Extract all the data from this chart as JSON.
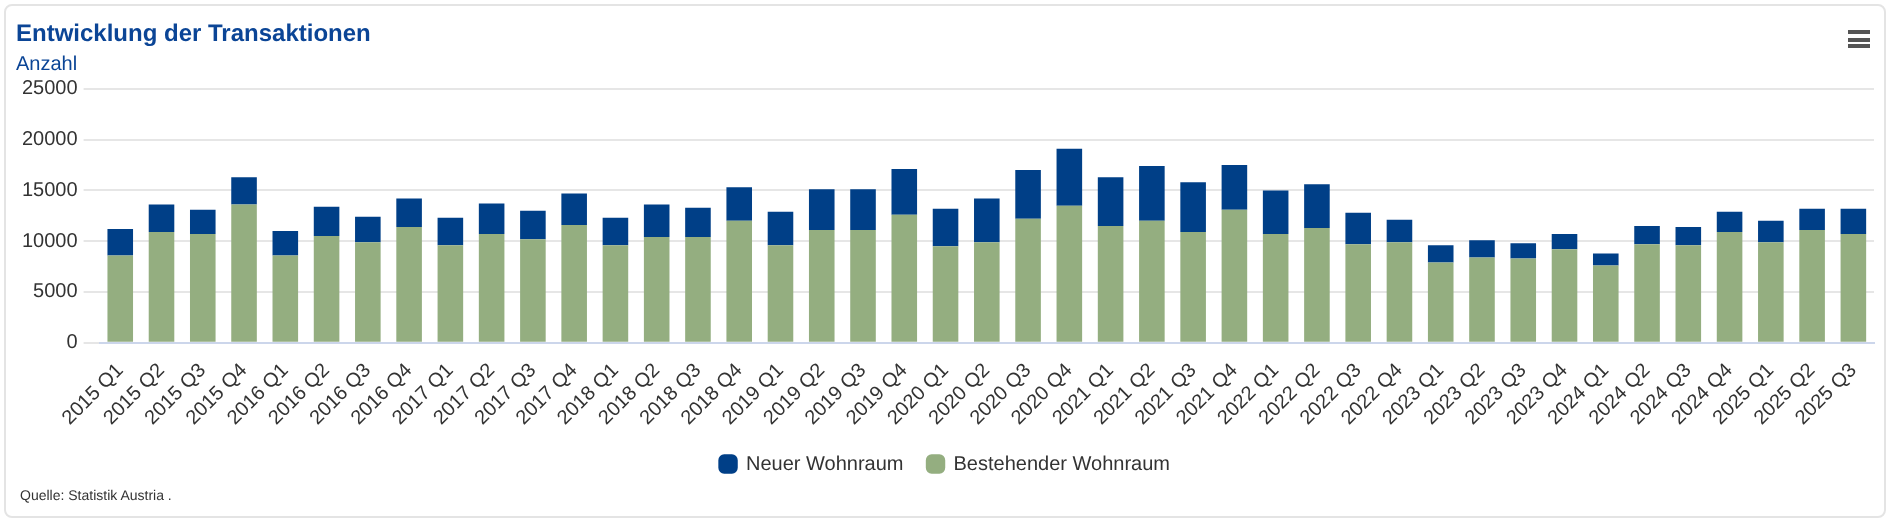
{
  "chart_data": {
    "type": "bar",
    "title": "Entwicklung der Transaktionen",
    "subtitle": "Anzahl",
    "stacked": true,
    "categories": [
      "2015 Q1",
      "2015 Q2",
      "2015 Q3",
      "2015 Q4",
      "2016 Q1",
      "2016 Q2",
      "2016 Q3",
      "2016 Q4",
      "2017 Q1",
      "2017 Q2",
      "2017 Q3",
      "2017 Q4",
      "2018 Q1",
      "2018 Q2",
      "2018 Q3",
      "2018 Q4",
      "2019 Q1",
      "2019 Q2",
      "2019 Q3",
      "2019 Q4",
      "2020 Q1",
      "2020 Q2",
      "2020 Q3",
      "2020 Q4",
      "2021 Q1",
      "2021 Q2",
      "2021 Q3",
      "2021 Q4",
      "2022 Q1",
      "2022 Q2",
      "2022 Q3",
      "2022 Q4",
      "2023 Q1",
      "2023 Q2",
      "2023 Q3",
      "2023 Q4",
      "2024 Q1",
      "2024 Q2",
      "2024 Q3",
      "2024 Q4",
      "2025 Q1",
      "2025 Q2",
      "2025 Q3"
    ],
    "series": [
      {
        "name": "Bestehender Wohnraum",
        "color": "#94ae80",
        "values": [
          8600,
          10900,
          10700,
          13600,
          8600,
          10500,
          9900,
          11400,
          9600,
          10700,
          10200,
          11600,
          9600,
          10400,
          10400,
          12000,
          9600,
          11100,
          11100,
          12600,
          9500,
          9900,
          12200,
          13500,
          11500,
          12000,
          10900,
          13100,
          10700,
          11300,
          9700,
          9900,
          7900,
          8400,
          8300,
          9200,
          7600,
          9700,
          9600,
          10900,
          9900,
          11100,
          10700
        ]
      },
      {
        "name": "Neuer Wohnraum",
        "color": "#003f87",
        "values": [
          2600,
          2700,
          2400,
          2700,
          2400,
          2900,
          2500,
          2800,
          2700,
          3000,
          2800,
          3100,
          2700,
          3200,
          2900,
          3300,
          3300,
          4000,
          4000,
          4500,
          3700,
          4300,
          4800,
          5600,
          4800,
          5400,
          4900,
          4400,
          4300,
          4300,
          3100,
          2200,
          1700,
          1700,
          1500,
          1500,
          1200,
          1800,
          1800,
          2000,
          2100,
          2100,
          2500
        ]
      }
    ],
    "ylim": [
      0,
      25000
    ],
    "yticks": [
      0,
      5000,
      10000,
      15000,
      20000,
      25000
    ],
    "grid": "y",
    "legend": "bottom",
    "annotations": [
      "Quelle: Statistik Austria ."
    ]
  }
}
